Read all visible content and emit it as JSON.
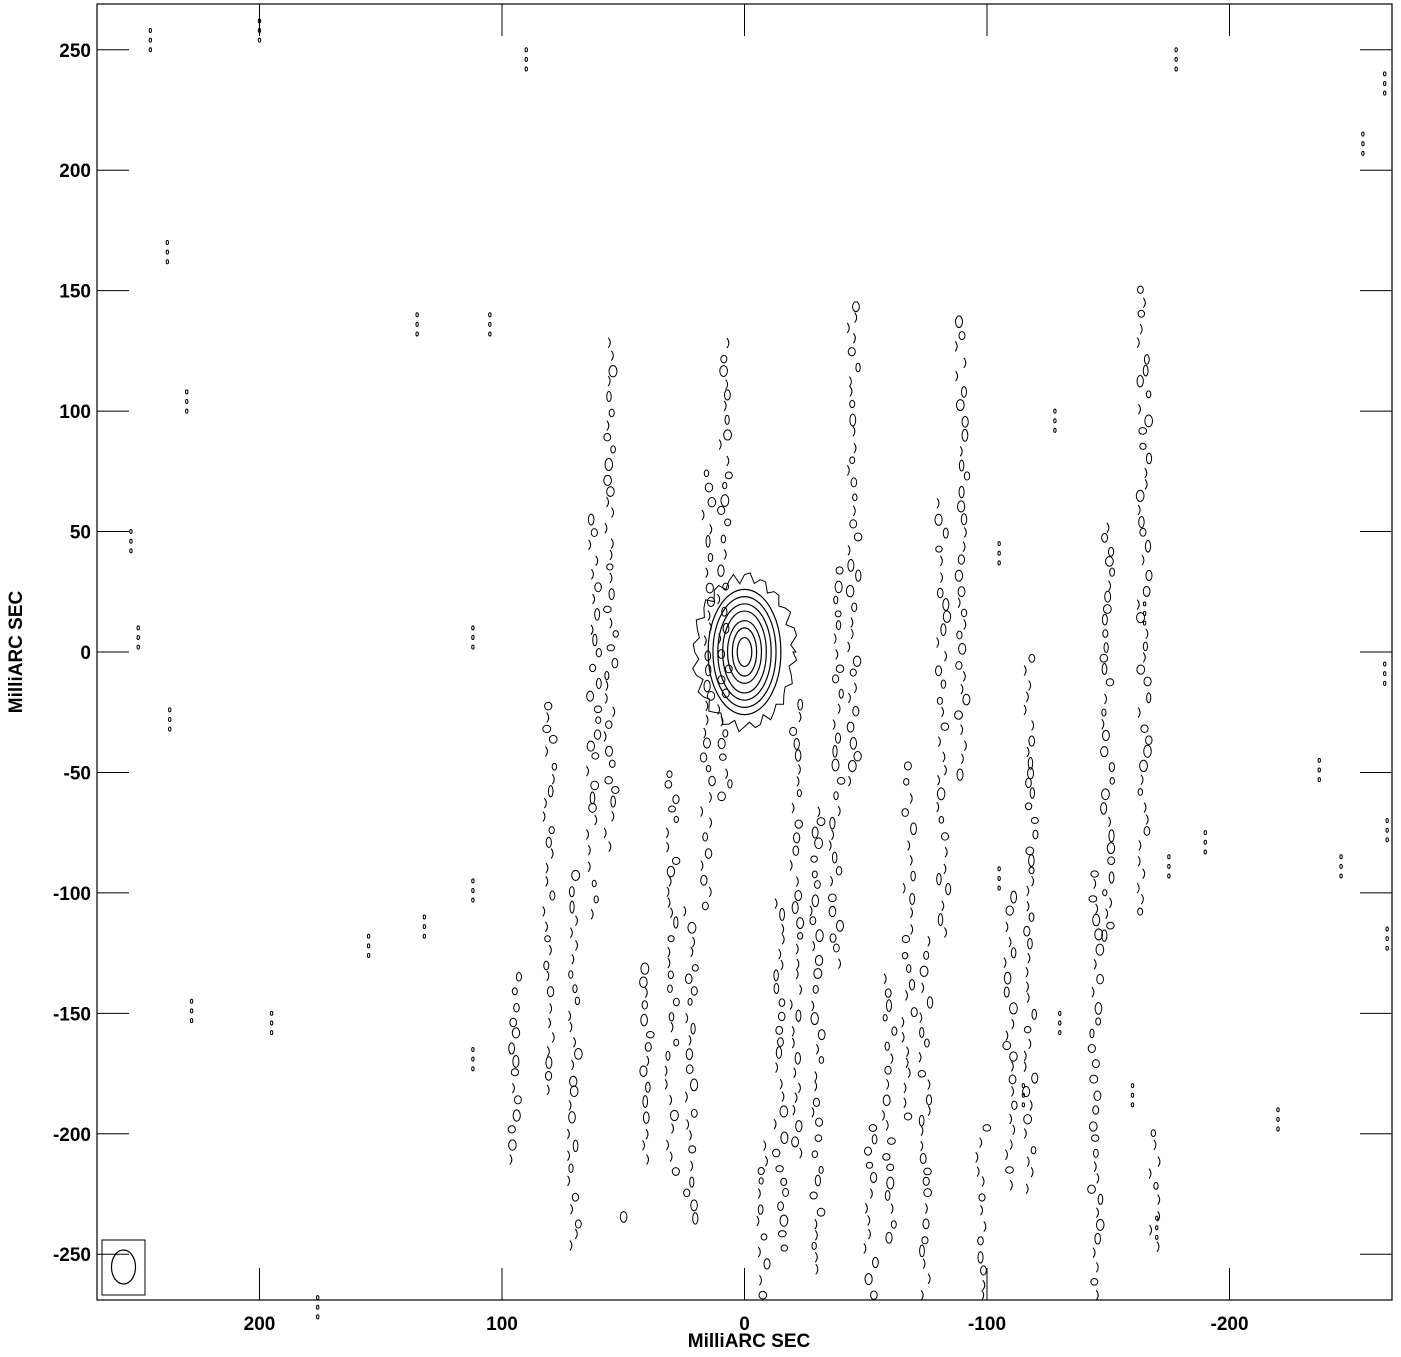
{
  "chart_data": {
    "type": "contour",
    "xlabel": "MilliARC SEC",
    "ylabel": "MilliARC SEC",
    "xlim": [
      267,
      -267
    ],
    "ylim": [
      -269,
      269
    ],
    "x_ticks": [
      200,
      100,
      0,
      -100,
      -200
    ],
    "x_tick_labels": [
      "200",
      "100",
      "0",
      "-100",
      "-200"
    ],
    "y_ticks": [
      250,
      200,
      150,
      100,
      50,
      0,
      -50,
      -100,
      -150,
      -200,
      -250
    ],
    "y_tick_labels": [
      "250",
      "200",
      "150",
      "100",
      "50",
      "0",
      "-50",
      "-100",
      "-150",
      "-200",
      "-250"
    ],
    "grid": false,
    "source": {
      "x": 0,
      "y": 0,
      "contour_semi_axes_mas": [
        [
          3,
          6
        ],
        [
          5,
          10
        ],
        [
          7,
          13
        ],
        [
          9,
          17
        ],
        [
          11,
          20
        ],
        [
          13,
          23
        ],
        [
          15,
          26
        ]
      ]
    },
    "beam": {
      "major_mas": 10,
      "minor_mas": 7,
      "pa_deg": 0,
      "location": "bottom-left"
    },
    "sidelobe_columns_x": [
      95,
      80,
      70,
      62,
      55,
      48,
      40,
      30,
      22,
      15,
      8,
      -8,
      -15,
      -22,
      -30,
      -38,
      -45,
      -52,
      -60,
      -68,
      -75,
      -82,
      -90,
      -98,
      -110,
      -118,
      -145,
      -150,
      -165,
      -170
    ],
    "sidelobe_column_extents_y": [
      [
        -220,
        -120
      ],
      [
        -200,
        -20
      ],
      [
        -260,
        -90
      ],
      [
        -120,
        60
      ],
      [
        -80,
        140
      ],
      [
        -260,
        -200
      ]
    ],
    "noise_contours_note": ""
  }
}
